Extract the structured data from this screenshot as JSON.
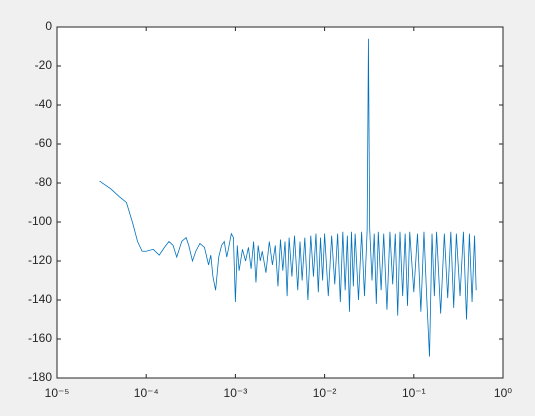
{
  "chart_data": {
    "type": "line",
    "xscale": "log",
    "grid": false,
    "xlim": [
      1e-05,
      1
    ],
    "ylim": [
      -180,
      0
    ],
    "xticks": [
      {
        "value": 1e-05,
        "label": "10⁻⁵"
      },
      {
        "value": 0.0001,
        "label": "10⁻⁴"
      },
      {
        "value": 0.001,
        "label": "10⁻³"
      },
      {
        "value": 0.01,
        "label": "10⁻²"
      },
      {
        "value": 0.1,
        "label": "10⁻¹"
      },
      {
        "value": 1,
        "label": "10⁰"
      }
    ],
    "yticks": [
      -180,
      -160,
      -140,
      -120,
      -100,
      -80,
      -60,
      -40,
      -20,
      0
    ],
    "series": [
      {
        "color": "#0072bd",
        "x": [
          3e-05,
          4e-05,
          5e-05,
          6e-05,
          7e-05,
          8e-05,
          9e-05,
          0.0001,
          0.00012,
          0.00014,
          0.00016,
          0.00018,
          0.0002,
          0.00022,
          0.00025,
          0.00028,
          0.0003,
          0.00033,
          0.00036,
          0.0004,
          0.00045,
          0.0005,
          0.00053,
          0.00056,
          0.0006,
          0.00065,
          0.0007,
          0.00075,
          0.0008,
          0.00085,
          0.0009,
          0.00095,
          0.001,
          0.00105,
          0.0011,
          0.0012,
          0.0013,
          0.0014,
          0.0015,
          0.0016,
          0.0017,
          0.0018,
          0.0019,
          0.002,
          0.0022,
          0.0024,
          0.0026,
          0.0028,
          0.003,
          0.0032,
          0.0034,
          0.0036,
          0.0038,
          0.004,
          0.0043,
          0.0046,
          0.005,
          0.0053,
          0.0056,
          0.006,
          0.0065,
          0.007,
          0.0075,
          0.008,
          0.0085,
          0.009,
          0.0095,
          0.01,
          0.011,
          0.012,
          0.013,
          0.014,
          0.015,
          0.016,
          0.017,
          0.018,
          0.019,
          0.02,
          0.021,
          0.022,
          0.024,
          0.026,
          0.028,
          0.03,
          0.031,
          0.032,
          0.034,
          0.036,
          0.038,
          0.04,
          0.043,
          0.046,
          0.05,
          0.054,
          0.058,
          0.062,
          0.066,
          0.07,
          0.075,
          0.08,
          0.085,
          0.09,
          0.1,
          0.11,
          0.12,
          0.13,
          0.14,
          0.15,
          0.16,
          0.17,
          0.18,
          0.2,
          0.22,
          0.24,
          0.26,
          0.28,
          0.3,
          0.33,
          0.36,
          0.39,
          0.42,
          0.45,
          0.48,
          0.5
        ],
        "values": [
          -79,
          -83,
          -87,
          -90,
          -100,
          -110,
          -115,
          -115,
          -114,
          -117,
          -113,
          -110,
          -112,
          -118,
          -110,
          -108,
          -112,
          -120,
          -115,
          -111,
          -113,
          -122,
          -117,
          -128,
          -135,
          -118,
          -112,
          -110,
          -118,
          -112,
          -106,
          -108,
          -141,
          -112,
          -125,
          -114,
          -120,
          -113,
          -124,
          -110,
          -131,
          -112,
          -120,
          -115,
          -126,
          -110,
          -122,
          -112,
          -133,
          -109,
          -125,
          -110,
          -138,
          -108,
          -128,
          -107,
          -135,
          -110,
          -130,
          -108,
          -140,
          -107,
          -128,
          -106,
          -136,
          -108,
          -130,
          -106,
          -138,
          -107,
          -132,
          -106,
          -141,
          -105,
          -135,
          -107,
          -146,
          -105,
          -133,
          -106,
          -140,
          -105,
          -138,
          -104,
          -6,
          -103,
          -130,
          -106,
          -142,
          -105,
          -135,
          -106,
          -145,
          -105,
          -132,
          -106,
          -148,
          -105,
          -138,
          -106,
          -143,
          -105,
          -136,
          -106,
          -146,
          -105,
          -140,
          -169,
          -106,
          -138,
          -105,
          -147,
          -106,
          -139,
          -105,
          -144,
          -106,
          -138,
          -105,
          -150,
          -106,
          -141,
          -107,
          -135
        ]
      }
    ]
  }
}
